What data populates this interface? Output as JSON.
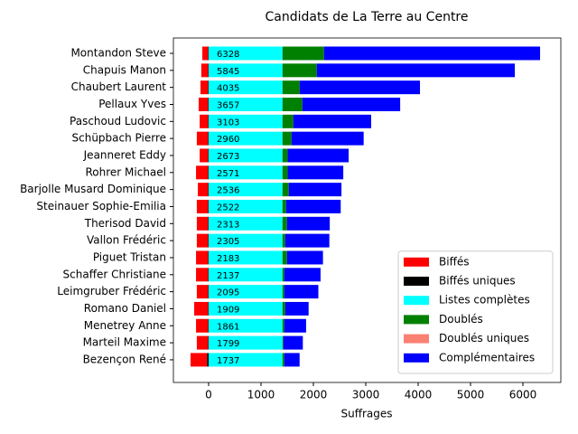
{
  "chart_data": {
    "type": "stacked-barh",
    "title": "Candidats de La Terre au Centre",
    "x_label": "Suffrages",
    "categories": [
      "Montandon Steve",
      "Chapuis Manon",
      "Chaubert Laurent",
      "Pellaux Yves",
      "Paschoud Ludovic",
      "Schüpbach Pierre",
      "Jeanneret Eddy",
      "Rohrer Michael",
      "Barjolle Musard Dominique",
      "Steinauer Sophie-Emilia",
      "Therisod David",
      "Vallon Frédéric",
      "Piguet Tristan",
      "Schaffer Christiane",
      "Leimgruber Frédéric",
      "Romano Daniel",
      "Menetrey Anne",
      "Marteil Maxime",
      "Bezençon René"
    ],
    "totals": [
      6328,
      5845,
      4035,
      3657,
      3103,
      2960,
      2673,
      2571,
      2536,
      2522,
      2313,
      2305,
      2183,
      2137,
      2095,
      1909,
      1861,
      1799,
      1737
    ],
    "series": [
      {
        "name": "Biffés",
        "color": "#ff0000",
        "values": [
          -110,
          -130,
          -145,
          -180,
          -160,
          -215,
          -160,
          -230,
          -195,
          -215,
          -215,
          -215,
          -230,
          -230,
          -215,
          -265,
          -230,
          -215,
          -315
        ]
      },
      {
        "name": "Biffés uniques",
        "color": "#000000",
        "values": [
          -10,
          -10,
          -10,
          -10,
          -10,
          -10,
          -10,
          -10,
          -10,
          -10,
          -10,
          -10,
          -10,
          -10,
          -10,
          -10,
          -10,
          -10,
          -30
        ]
      },
      {
        "name": "Listes complètes",
        "color": "#00ffff",
        "values": [
          1410,
          1410,
          1410,
          1410,
          1410,
          1410,
          1410,
          1410,
          1410,
          1410,
          1410,
          1410,
          1410,
          1410,
          1410,
          1410,
          1410,
          1410,
          1410
        ]
      },
      {
        "name": "Doublés",
        "color": "#008000",
        "values": [
          793,
          655,
          328,
          380,
          207,
          172,
          100,
          100,
          120,
          69,
          86,
          52,
          86,
          35,
          35,
          52,
          35,
          17,
          35
        ]
      },
      {
        "name": "Doublés uniques",
        "color": "#fa8072",
        "values": [
          0,
          0,
          0,
          0,
          0,
          0,
          0,
          0,
          0,
          0,
          0,
          0,
          0,
          0,
          0,
          0,
          0,
          0,
          0
        ]
      },
      {
        "name": "Complémentaires",
        "color": "#0000ff",
        "values": [
          4125,
          3780,
          2297,
          1867,
          1486,
          1378,
          1163,
          1061,
          1006,
          1043,
          817,
          843,
          687,
          692,
          650,
          447,
          416,
          372,
          292
        ]
      }
    ],
    "xlim": [
      -672,
      6724
    ],
    "xticks": [
      0,
      1000,
      2000,
      3000,
      4000,
      5000,
      6000
    ],
    "legend": "lower right"
  }
}
